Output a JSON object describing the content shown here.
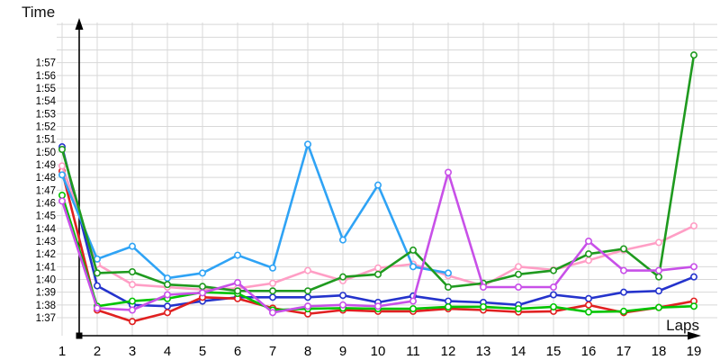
{
  "page": {
    "background": "#ffffff"
  },
  "chart_data": {
    "type": "line",
    "title": "",
    "ylabel": "Time",
    "xlabel": "Laps",
    "legend": "none",
    "grid": true,
    "grid_color": "#d8d8d8",
    "axis_color": "#000000",
    "marker": "open-circle",
    "x_axis": {
      "label": "Laps",
      "tick_labels": [
        "1",
        "2",
        "3",
        "4",
        "5",
        "6",
        "7",
        "8",
        "9",
        "10",
        "11",
        "12",
        "13",
        "14",
        "15",
        "16",
        "17",
        "18",
        "19"
      ],
      "min": 1,
      "max": 19
    },
    "y_axis": {
      "label": "Time",
      "unit": "lap time m:ss, values stored as seconds past 1:00 (97 = 1:37)",
      "tick_labels": [
        "1:37",
        "1:38",
        "1:39",
        "1:40",
        "1:41",
        "1:42",
        "1:43",
        "1:44",
        "1:45",
        "1:46",
        "1:47",
        "1:48",
        "1:49",
        "1:50",
        "1:51",
        "1:52",
        "1:53",
        "1:54",
        "1:55",
        "1:56",
        "1:57"
      ],
      "min_sec": 97,
      "gridline_top_sec": 120
    },
    "x": [
      1,
      2,
      3,
      4,
      5,
      6,
      7,
      8,
      9,
      10,
      11,
      12,
      13,
      14,
      15,
      16,
      17,
      18,
      19
    ],
    "series": [
      {
        "name": "dark-blue",
        "color": "#2433cc",
        "values_sec": [
          110.4,
          99.5,
          98.0,
          97.9,
          98.3,
          98.6,
          98.6,
          98.6,
          98.75,
          98.2,
          98.7,
          98.3,
          98.2,
          98.0,
          98.8,
          98.5,
          99.0,
          99.1,
          100.2
        ]
      },
      {
        "name": "red",
        "color": "#e02020",
        "values_sec": [
          108.5,
          97.6,
          96.7,
          97.4,
          98.6,
          98.5,
          97.75,
          97.3,
          97.6,
          97.5,
          97.5,
          97.7,
          97.6,
          97.45,
          97.5,
          98.0,
          97.4,
          97.8,
          98.3
        ]
      },
      {
        "name": "bright-green",
        "color": "#00c400",
        "values_sec": [
          106.6,
          97.9,
          98.3,
          98.5,
          99.0,
          98.9,
          97.6,
          97.7,
          97.75,
          97.7,
          97.7,
          97.85,
          97.85,
          97.7,
          97.85,
          97.45,
          97.5,
          97.8,
          97.9
        ]
      },
      {
        "name": "pink",
        "color": "#ff9ec5",
        "values_sec": [
          108.9,
          101.2,
          99.6,
          99.4,
          99.2,
          99.3,
          99.7,
          100.7,
          99.9,
          100.9,
          101.2,
          100.3,
          99.5,
          101.0,
          100.75,
          101.5,
          102.3,
          102.9,
          104.2
        ]
      },
      {
        "name": "light-blue",
        "color": "#2fa3f5",
        "values_sec": [
          108.2,
          101.6,
          102.6,
          100.1,
          100.5,
          101.9,
          100.9,
          110.6,
          103.1,
          107.4,
          101.0,
          100.5,
          null,
          null,
          null,
          null,
          null,
          null,
          null
        ]
      },
      {
        "name": "dark-green",
        "color": "#1f9a1f",
        "values_sec": [
          110.2,
          100.5,
          100.6,
          99.6,
          99.45,
          99.1,
          99.1,
          99.1,
          100.2,
          100.4,
          102.3,
          99.4,
          99.7,
          100.4,
          100.7,
          102.0,
          102.4,
          100.2,
          117.6
        ]
      },
      {
        "name": "magenta",
        "color": "#c850e8",
        "values_sec": [
          106.15,
          97.75,
          97.6,
          98.8,
          98.95,
          99.75,
          97.4,
          97.9,
          98.0,
          97.9,
          98.3,
          108.4,
          99.4,
          99.4,
          99.4,
          103.0,
          100.7,
          100.7,
          101.0
        ]
      }
    ]
  }
}
